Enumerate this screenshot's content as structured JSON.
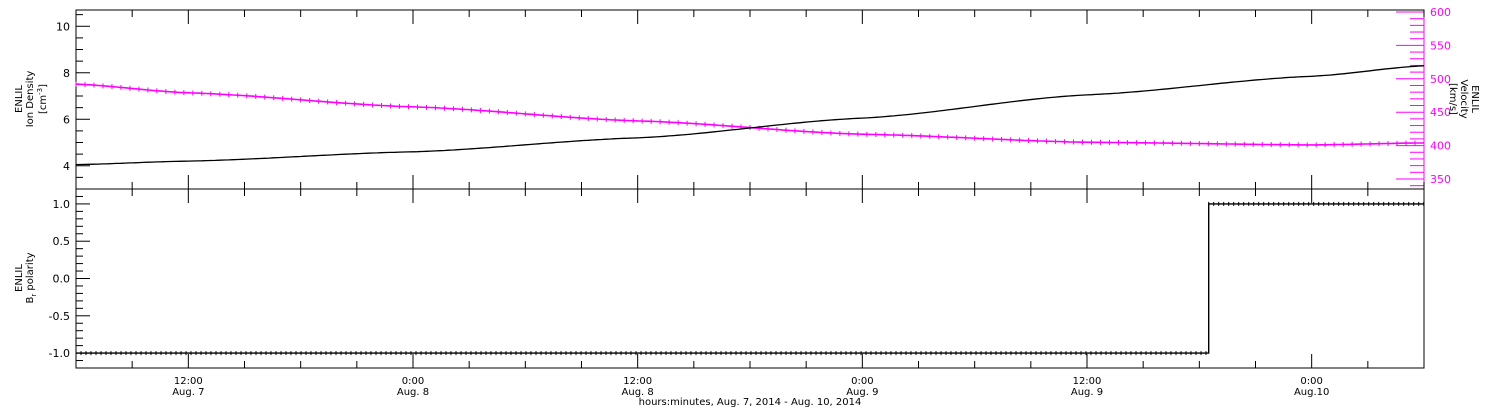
{
  "colors": {
    "axis": "#000000",
    "density": "#000000",
    "velocity": "#ff00ff",
    "polarity": "#000000"
  },
  "chart_data": [
    {
      "type": "line",
      "panel": "top",
      "x_start": "2014-08-07T06:00",
      "x_end": "2014-08-10T06:00",
      "left_axis": {
        "title_lines": [
          "ENLIL",
          "Ion Density"
        ],
        "unit": {
          "base": "[cm",
          "sup": "-3",
          "close": "]"
        },
        "ylim": [
          3,
          10.7
        ],
        "ticks": [
          4,
          6,
          8,
          10
        ],
        "tick_labels": [
          "4",
          "6",
          "8",
          "10"
        ]
      },
      "right_axis": {
        "title_lines": [
          "ENLIL",
          "Velocity",
          "[km/s]"
        ],
        "ylim": [
          335,
          603
        ],
        "ticks": [
          350,
          400,
          450,
          500,
          550,
          600
        ],
        "tick_labels": [
          "350",
          "400",
          "450",
          "500",
          "550",
          "600"
        ]
      },
      "series": [
        {
          "axis": "left",
          "values": [
            {
              "x": "2014-08-07T06:00",
              "y": 4.05
            },
            {
              "x": "2014-08-07T12:00",
              "y": 4.2
            },
            {
              "x": "2014-08-08T00:00",
              "y": 4.6
            },
            {
              "x": "2014-08-08T12:00",
              "y": 5.2
            },
            {
              "x": "2014-08-09T00:00",
              "y": 6.05
            },
            {
              "x": "2014-08-09T12:00",
              "y": 7.05
            },
            {
              "x": "2014-08-10T00:00",
              "y": 7.85
            },
            {
              "x": "2014-08-10T06:00",
              "y": 8.3
            }
          ]
        },
        {
          "axis": "right",
          "values": [
            {
              "x": "2014-08-07T06:00",
              "y": 492
            },
            {
              "x": "2014-08-07T12:00",
              "y": 479
            },
            {
              "x": "2014-08-08T00:00",
              "y": 458
            },
            {
              "x": "2014-08-08T12:00",
              "y": 437
            },
            {
              "x": "2014-08-09T00:00",
              "y": 417
            },
            {
              "x": "2014-08-09T12:00",
              "y": 405
            },
            {
              "x": "2014-08-10T00:00",
              "y": 401
            },
            {
              "x": "2014-08-10T06:00",
              "y": 404
            }
          ]
        }
      ]
    },
    {
      "type": "line",
      "panel": "bottom",
      "x_start": "2014-08-07T06:00",
      "x_end": "2014-08-10T06:00",
      "left_axis": {
        "title_lines": [
          "ENLIL"
        ],
        "title_b": {
          "base": "B",
          "sub": "r",
          "rest": " polarity"
        },
        "ylim": [
          -1.2,
          1.2
        ],
        "ticks": [
          -1.0,
          -0.5,
          0.0,
          0.5,
          1.0
        ],
        "tick_labels": [
          "-1.0",
          "-0.5",
          "0.0",
          "0.5",
          "1.0"
        ]
      },
      "series": [
        {
          "values": [
            {
              "x": "2014-08-07T06:00",
              "y": -1
            },
            {
              "x": "2014-08-09T18:30",
              "y": -1
            },
            {
              "x": "2014-08-09T18:30",
              "y": 1
            },
            {
              "x": "2014-08-10T06:00",
              "y": 1
            }
          ]
        }
      ]
    }
  ],
  "x_axis": {
    "major_ticks": [
      {
        "x": "2014-08-07T12:00",
        "time": "12:00",
        "date": "Aug. 7"
      },
      {
        "x": "2014-08-08T00:00",
        "time": "0:00",
        "date": "Aug. 8"
      },
      {
        "x": "2014-08-08T12:00",
        "time": "12:00",
        "date": "Aug. 8"
      },
      {
        "x": "2014-08-09T00:00",
        "time": "0:00",
        "date": "Aug. 9"
      },
      {
        "x": "2014-08-09T12:00",
        "time": "12:00",
        "date": "Aug. 9"
      },
      {
        "x": "2014-08-10T00:00",
        "time": "0:00",
        "date": "Aug.10"
      }
    ],
    "title": "hours:minutes, Aug.  7, 2014 - Aug. 10, 2014"
  }
}
